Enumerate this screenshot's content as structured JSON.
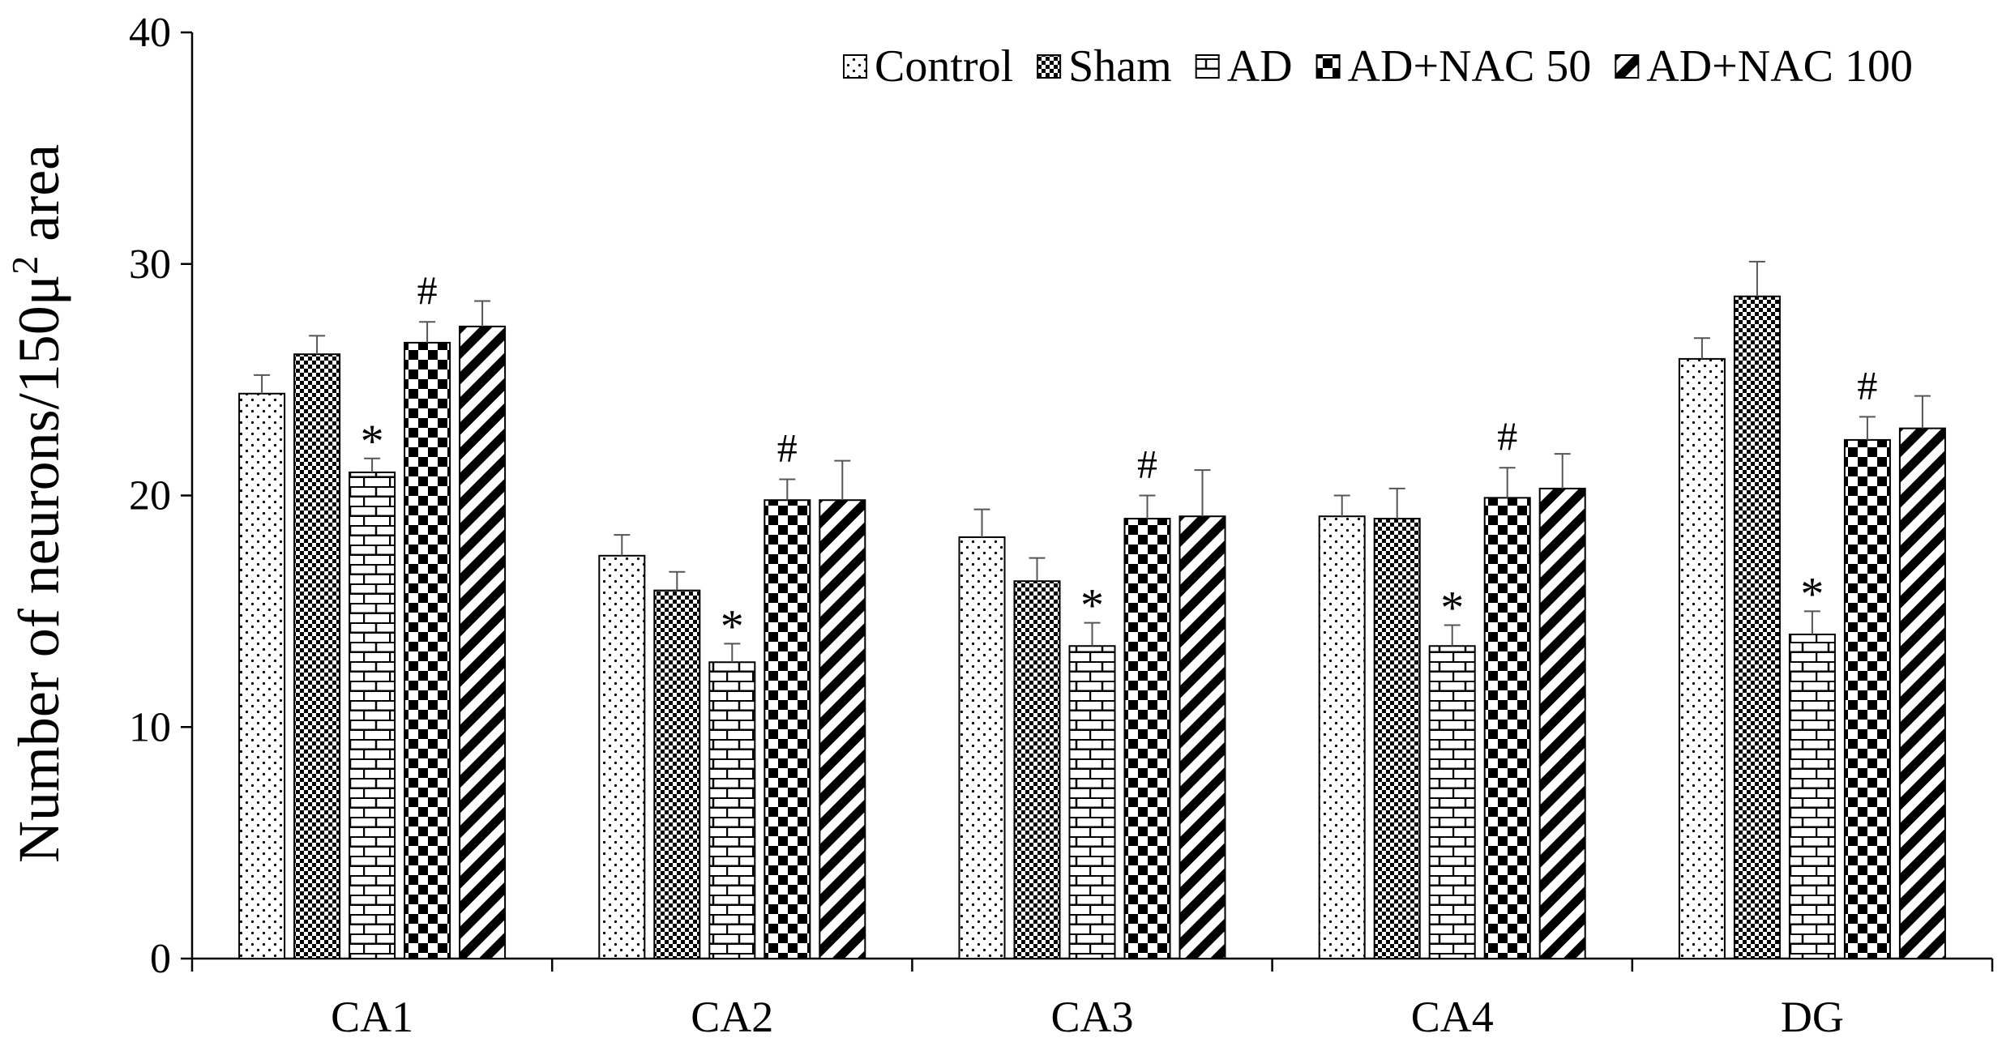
{
  "chart_data": {
    "type": "bar",
    "title": "",
    "xlabel": "",
    "ylabel": {
      "prefix": "Number of neurons/150μ",
      "superscript": "2",
      "suffix": " area"
    },
    "ylim": [
      0,
      40
    ],
    "yticks": [
      0,
      10,
      20,
      30,
      40
    ],
    "ytick_labels": [
      "0",
      "10",
      "20",
      "30",
      "40"
    ],
    "grid": false,
    "legend_position": "top-right",
    "categories": [
      "CA1",
      "CA2",
      "CA3",
      "CA4",
      "DG"
    ],
    "series": [
      {
        "name": "Control",
        "pattern": "dots",
        "values": [
          24.4,
          17.4,
          18.2,
          19.1,
          25.9
        ],
        "errors": [
          0.8,
          0.9,
          1.2,
          0.9,
          0.9
        ]
      },
      {
        "name": "Sham",
        "pattern": "checker",
        "values": [
          26.1,
          15.9,
          16.3,
          19.0,
          28.6
        ],
        "errors": [
          0.8,
          0.8,
          1.0,
          1.3,
          1.5
        ]
      },
      {
        "name": "AD",
        "pattern": "brick",
        "values": [
          21.0,
          12.8,
          13.5,
          13.5,
          14.0
        ],
        "errors": [
          0.6,
          0.8,
          1.0,
          0.9,
          1.0
        ]
      },
      {
        "name": "AD+NAC 50",
        "pattern": "bigchecker",
        "values": [
          26.6,
          19.8,
          19.0,
          19.9,
          22.4
        ],
        "errors": [
          0.9,
          0.9,
          1.0,
          1.3,
          1.0
        ]
      },
      {
        "name": "AD+NAC 100",
        "pattern": "diagonal",
        "values": [
          27.3,
          19.8,
          19.1,
          20.3,
          22.9
        ],
        "errors": [
          1.1,
          1.7,
          2.0,
          1.5,
          1.4
        ]
      }
    ],
    "annotations": [
      {
        "text": "*",
        "category": "CA1",
        "series": "AD"
      },
      {
        "text": "#",
        "category": "CA1",
        "series": "AD+NAC 50"
      },
      {
        "text": "*",
        "category": "CA2",
        "series": "AD"
      },
      {
        "text": "#",
        "category": "CA2",
        "series": "AD+NAC 50"
      },
      {
        "text": "*",
        "category": "CA3",
        "series": "AD"
      },
      {
        "text": "#",
        "category": "CA3",
        "series": "AD+NAC 50"
      },
      {
        "text": "*",
        "category": "CA4",
        "series": "AD"
      },
      {
        "text": "#",
        "category": "CA4",
        "series": "AD+NAC 50"
      },
      {
        "text": "*",
        "category": "DG",
        "series": "AD"
      },
      {
        "text": "#",
        "category": "DG",
        "series": "AD+NAC 50"
      }
    ]
  }
}
